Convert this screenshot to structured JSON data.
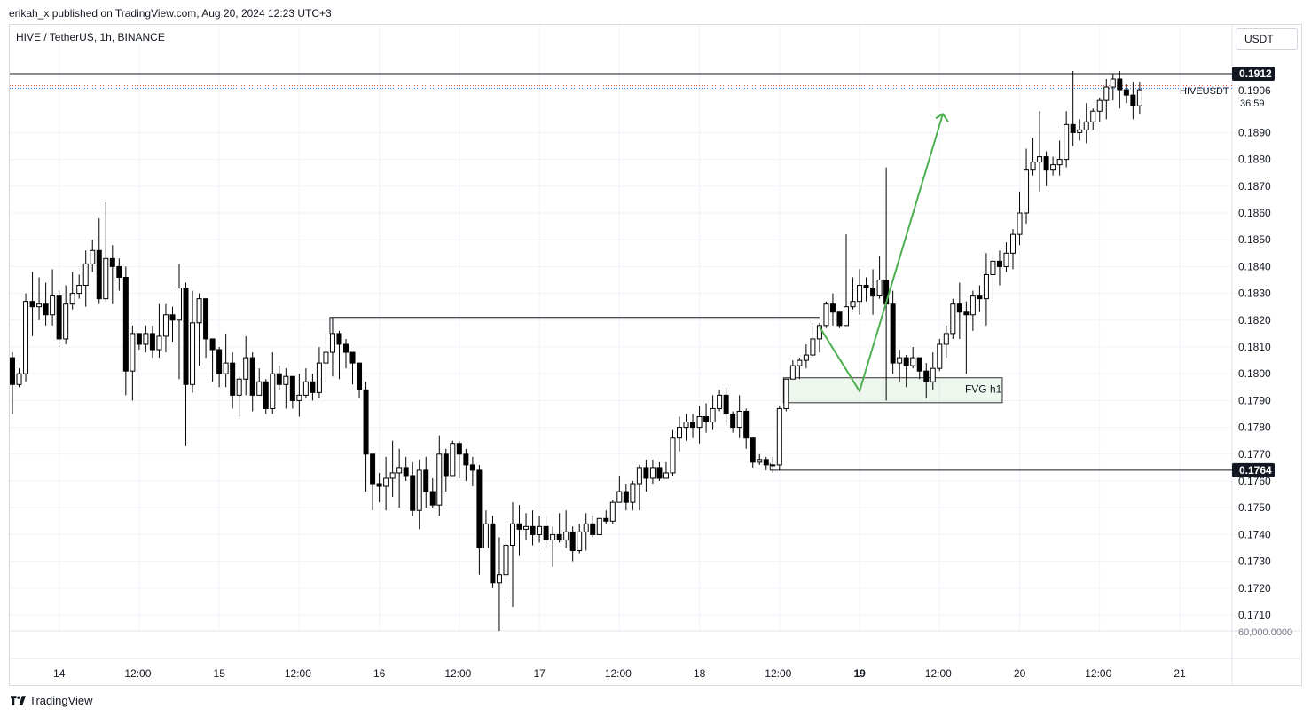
{
  "header": {
    "publisher_line": "erikah_x published on TradingView.com, Aug 20, 2024 12:23 UTC+3"
  },
  "symbol": {
    "title": "HIVE / TetherUS, 1h, BINANCE",
    "unit_button": "USDT"
  },
  "footer": {
    "brand": "TradingView",
    "logo_icon": "tradingview-logo-icon"
  },
  "colors": {
    "up_body": "#ffffff",
    "down_body": "#000000",
    "wick": "#000000",
    "arrow": "#4caf50",
    "grid": "#f0f3fa",
    "label_bg": "#131722",
    "level_dotted_red": "#ef5350",
    "level_dotted_blue": "#2962ff"
  },
  "chart_data": {
    "type": "candlestick",
    "symbol": "HIVEUSDT",
    "interval": "1h",
    "y_range": [
      0.1705,
      0.1918
    ],
    "y_ticks": [
      "0.1710",
      "0.1720",
      "0.1730",
      "0.1740",
      "0.1750",
      "0.1760",
      "0.1770",
      "0.1780",
      "0.1790",
      "0.1800",
      "0.1810",
      "0.1820",
      "0.1830",
      "0.1840",
      "0.1850",
      "0.1860",
      "0.1870",
      "0.1880",
      "0.1890"
    ],
    "x_ticks": [
      {
        "label": "14",
        "bold": false,
        "index": 7
      },
      {
        "label": "12:00",
        "bold": false,
        "index": 19
      },
      {
        "label": "15",
        "bold": false,
        "index": 31
      },
      {
        "label": "12:00",
        "bold": false,
        "index": 43
      },
      {
        "label": "16",
        "bold": false,
        "index": 55
      },
      {
        "label": "12:00",
        "bold": false,
        "index": 67
      },
      {
        "label": "17",
        "bold": false,
        "index": 79
      },
      {
        "label": "12:00",
        "bold": false,
        "index": 91
      },
      {
        "label": "18",
        "bold": false,
        "index": 103
      },
      {
        "label": "12:00",
        "bold": false,
        "index": 115
      },
      {
        "label": "19",
        "bold": true,
        "index": 127
      },
      {
        "label": "12:00",
        "bold": false,
        "index": 139
      },
      {
        "label": "20",
        "bold": false,
        "index": 151
      },
      {
        "label": "12:00",
        "bold": false,
        "index": 163
      },
      {
        "label": "21",
        "bold": false,
        "index": 175
      }
    ],
    "volume_label": "60,000.0000",
    "last_price": {
      "symbol_label": "HIVEUSDT",
      "price": "0.1906",
      "countdown": "36:59"
    },
    "price_labels": [
      {
        "price": 0.1912,
        "text": "0.1912"
      },
      {
        "price": 0.1764,
        "text": "0.1764"
      }
    ],
    "levels": [
      {
        "kind": "horizontal-line",
        "price": 0.1912,
        "from_index": 0
      },
      {
        "kind": "horizontal-ray",
        "price": 0.1821,
        "from_index": 48,
        "to_index": 121
      },
      {
        "kind": "horizontal-ray",
        "price": 0.1764,
        "from_index": 114
      },
      {
        "kind": "dotted",
        "price": 0.19075,
        "color": "red"
      },
      {
        "kind": "dotted",
        "price": 0.19065,
        "color": "blue"
      }
    ],
    "fvg_zone": {
      "label": "FVG h1",
      "top": 0.17985,
      "bottom": 0.17892,
      "from_index": 116,
      "to_index": 148
    },
    "projection_path": [
      {
        "index": 121,
        "price": 0.18175
      },
      {
        "index": 127,
        "price": 0.17935
      },
      {
        "index": 139.5,
        "price": 0.1897
      }
    ],
    "candles": [
      [
        0.1806,
        0.1796,
        0.1808,
        0.1785
      ],
      [
        0.1796,
        0.18,
        0.1802,
        0.1795
      ],
      [
        0.18,
        0.1827,
        0.183,
        0.1797
      ],
      [
        0.1827,
        0.1825,
        0.1838,
        0.1814
      ],
      [
        0.1825,
        0.1826,
        0.1836,
        0.182
      ],
      [
        0.1826,
        0.1822,
        0.1834,
        0.1818
      ],
      [
        0.1822,
        0.1829,
        0.1839,
        0.1818
      ],
      [
        0.1829,
        0.1813,
        0.1831,
        0.181
      ],
      [
        0.1813,
        0.1826,
        0.1833,
        0.1811
      ],
      [
        0.1826,
        0.183,
        0.1838,
        0.1824
      ],
      [
        0.183,
        0.1833,
        0.1837,
        0.1828
      ],
      [
        0.1833,
        0.1841,
        0.1846,
        0.1825
      ],
      [
        0.1841,
        0.1846,
        0.185,
        0.1838
      ],
      [
        0.1846,
        0.1828,
        0.1858,
        0.1826
      ],
      [
        0.1828,
        0.1843,
        0.1864,
        0.1827
      ],
      [
        0.1843,
        0.184,
        0.1848,
        0.1826
      ],
      [
        0.184,
        0.1836,
        0.1843,
        0.1831
      ],
      [
        0.1836,
        0.1801,
        0.184,
        0.1792
      ],
      [
        0.1801,
        0.1815,
        0.1818,
        0.179
      ],
      [
        0.1815,
        0.1811,
        0.1814,
        0.1809
      ],
      [
        0.1811,
        0.1815,
        0.1818,
        0.1808
      ],
      [
        0.1815,
        0.1809,
        0.1818,
        0.1806
      ],
      [
        0.1809,
        0.1814,
        0.1826,
        0.1806
      ],
      [
        0.1814,
        0.1822,
        0.1826,
        0.1808
      ],
      [
        0.1822,
        0.182,
        0.1825,
        0.1812
      ],
      [
        0.182,
        0.1832,
        0.1841,
        0.1798
      ],
      [
        0.1832,
        0.1796,
        0.1834,
        0.1773
      ],
      [
        0.1796,
        0.1819,
        0.1831,
        0.1793
      ],
      [
        0.1819,
        0.1828,
        0.183,
        0.1803
      ],
      [
        0.1828,
        0.1813,
        0.1826,
        0.1806
      ],
      [
        0.1813,
        0.1809,
        0.1813,
        0.1797
      ],
      [
        0.1809,
        0.18,
        0.181,
        0.1795
      ],
      [
        0.18,
        0.1804,
        0.1815,
        0.1795
      ],
      [
        0.1804,
        0.1792,
        0.1808,
        0.1787
      ],
      [
        0.1792,
        0.1798,
        0.1799,
        0.1784
      ],
      [
        0.1798,
        0.1806,
        0.1814,
        0.1792
      ],
      [
        0.1806,
        0.1792,
        0.1808,
        0.1786
      ],
      [
        0.1792,
        0.1797,
        0.1802,
        0.1792
      ],
      [
        0.1797,
        0.1787,
        0.1798,
        0.1785
      ],
      [
        0.1787,
        0.18,
        0.1808,
        0.1785
      ],
      [
        0.18,
        0.1796,
        0.1803,
        0.1794
      ],
      [
        0.1796,
        0.1799,
        0.1802,
        0.1787
      ],
      [
        0.1799,
        0.179,
        0.1798,
        0.1787
      ],
      [
        0.179,
        0.1792,
        0.18,
        0.1784
      ],
      [
        0.1792,
        0.1797,
        0.1802,
        0.1791
      ],
      [
        0.1797,
        0.1793,
        0.18,
        0.179
      ],
      [
        0.1793,
        0.1804,
        0.181,
        0.1791
      ],
      [
        0.1804,
        0.1808,
        0.1815,
        0.1797
      ],
      [
        0.1808,
        0.1815,
        0.1821,
        0.1799
      ],
      [
        0.1815,
        0.1811,
        0.1816,
        0.1798
      ],
      [
        0.1811,
        0.1808,
        0.1813,
        0.1802
      ],
      [
        0.1808,
        0.1804,
        0.1805,
        0.1796
      ],
      [
        0.1804,
        0.1794,
        0.1801,
        0.1791
      ],
      [
        0.1794,
        0.177,
        0.1797,
        0.1756
      ],
      [
        0.177,
        0.1759,
        0.1763,
        0.1749
      ],
      [
        0.1759,
        0.1758,
        0.1763,
        0.1752
      ],
      [
        0.1758,
        0.1761,
        0.1769,
        0.1749
      ],
      [
        0.1761,
        0.1763,
        0.1775,
        0.1754
      ],
      [
        0.1763,
        0.1765,
        0.1772,
        0.175
      ],
      [
        0.1765,
        0.1762,
        0.1769,
        0.176
      ],
      [
        0.1762,
        0.1749,
        0.1767,
        0.1747
      ],
      [
        0.1749,
        0.1764,
        0.1768,
        0.1742
      ],
      [
        0.1764,
        0.1756,
        0.1769,
        0.175
      ],
      [
        0.1756,
        0.1751,
        0.1761,
        0.175
      ],
      [
        0.1751,
        0.177,
        0.1777,
        0.1747
      ],
      [
        0.177,
        0.1762,
        0.1772,
        0.1756
      ],
      [
        0.1762,
        0.1774,
        0.1775,
        0.1766
      ],
      [
        0.1774,
        0.177,
        0.1775,
        0.1761
      ],
      [
        0.177,
        0.1766,
        0.1772,
        0.176
      ],
      [
        0.1766,
        0.1764,
        0.1769,
        0.1758
      ],
      [
        0.1764,
        0.1735,
        0.1766,
        0.1725
      ],
      [
        0.1735,
        0.1744,
        0.1749,
        0.1736
      ],
      [
        0.1744,
        0.1722,
        0.1747,
        0.172
      ],
      [
        0.1722,
        0.1725,
        0.1739,
        0.1704
      ],
      [
        0.1725,
        0.1736,
        0.1745,
        0.1716
      ],
      [
        0.1736,
        0.1744,
        0.1752,
        0.1713
      ],
      [
        0.1744,
        0.1742,
        0.1751,
        0.1732
      ],
      [
        0.1742,
        0.1743,
        0.1748,
        0.1738
      ],
      [
        0.1743,
        0.174,
        0.1749,
        0.1736
      ],
      [
        0.174,
        0.1743,
        0.1747,
        0.1737
      ],
      [
        0.1743,
        0.1738,
        0.1747,
        0.1735
      ],
      [
        0.1738,
        0.174,
        0.1743,
        0.1728
      ],
      [
        0.174,
        0.1738,
        0.1748,
        0.1737
      ],
      [
        0.1738,
        0.1741,
        0.1749,
        0.1735
      ],
      [
        0.1741,
        0.1734,
        0.1743,
        0.173
      ],
      [
        0.1734,
        0.1741,
        0.1744,
        0.1733
      ],
      [
        0.1741,
        0.1744,
        0.1748,
        0.1734
      ],
      [
        0.1744,
        0.174,
        0.1747,
        0.1739
      ],
      [
        0.174,
        0.1746,
        0.1746,
        0.1742
      ],
      [
        0.1746,
        0.1745,
        0.1749,
        0.1744
      ],
      [
        0.1745,
        0.1752,
        0.1753,
        0.1744
      ],
      [
        0.1752,
        0.1756,
        0.1762,
        0.1753
      ],
      [
        0.1756,
        0.1752,
        0.1759,
        0.1749
      ],
      [
        0.1752,
        0.1759,
        0.176,
        0.1749
      ],
      [
        0.1759,
        0.1765,
        0.1766,
        0.1749
      ],
      [
        0.1765,
        0.1761,
        0.1768,
        0.1756
      ],
      [
        0.1761,
        0.1765,
        0.1768,
        0.1759
      ],
      [
        0.1765,
        0.1761,
        0.1767,
        0.176
      ],
      [
        0.1761,
        0.1763,
        0.1767,
        0.1761
      ],
      [
        0.1763,
        0.1776,
        0.1779,
        0.1762
      ],
      [
        0.1776,
        0.178,
        0.1784,
        0.1771
      ],
      [
        0.178,
        0.1782,
        0.1785,
        0.1775
      ],
      [
        0.1782,
        0.178,
        0.1785,
        0.1776
      ],
      [
        0.178,
        0.1784,
        0.1788,
        0.1774
      ],
      [
        0.1784,
        0.1782,
        0.1789,
        0.1778
      ],
      [
        0.1782,
        0.1787,
        0.1792,
        0.1779
      ],
      [
        0.1787,
        0.1792,
        0.1794,
        0.1786
      ],
      [
        0.1792,
        0.1785,
        0.1795,
        0.1781
      ],
      [
        0.1785,
        0.178,
        0.1786,
        0.1778
      ],
      [
        0.178,
        0.1786,
        0.1792,
        0.1776
      ],
      [
        0.1786,
        0.1776,
        0.1787,
        0.1772
      ],
      [
        0.1776,
        0.1767,
        0.1775,
        0.1765
      ],
      [
        0.1767,
        0.1768,
        0.177,
        0.1766
      ],
      [
        0.1768,
        0.1766,
        0.1769,
        0.1764
      ],
      [
        0.1766,
        0.1766,
        0.1769,
        0.1763
      ],
      [
        0.1766,
        0.1787,
        0.1788,
        0.1764
      ],
      [
        0.1787,
        0.1798,
        0.1798,
        0.1786
      ],
      [
        0.1798,
        0.1803,
        0.1805,
        0.1799
      ],
      [
        0.1803,
        0.1805,
        0.1806,
        0.1798
      ],
      [
        0.1805,
        0.1807,
        0.1811,
        0.1802
      ],
      [
        0.1807,
        0.1813,
        0.1819,
        0.1806
      ],
      [
        0.1813,
        0.1818,
        0.1819,
        0.1808
      ],
      [
        0.1818,
        0.1826,
        0.1827,
        0.1817
      ],
      [
        0.1826,
        0.1823,
        0.183,
        0.1818
      ],
      [
        0.1823,
        0.1818,
        0.1823,
        0.1817
      ],
      [
        0.1818,
        0.1825,
        0.1852,
        0.1818
      ],
      [
        0.1825,
        0.1827,
        0.1836,
        0.1824
      ],
      [
        0.1827,
        0.1833,
        0.1839,
        0.1822
      ],
      [
        0.1833,
        0.1832,
        0.1836,
        0.1827
      ],
      [
        0.1832,
        0.1829,
        0.1839,
        0.1822
      ],
      [
        0.1829,
        0.1835,
        0.1844,
        0.1828
      ],
      [
        0.1835,
        0.1826,
        0.1877,
        0.179
      ],
      [
        0.1826,
        0.1804,
        0.1831,
        0.18
      ],
      [
        0.1804,
        0.1806,
        0.1809,
        0.1797
      ],
      [
        0.1806,
        0.1803,
        0.1807,
        0.1795
      ],
      [
        0.1803,
        0.1806,
        0.181,
        0.1802
      ],
      [
        0.1806,
        0.1801,
        0.1806,
        0.1798
      ],
      [
        0.1801,
        0.1797,
        0.1804,
        0.1791
      ],
      [
        0.1797,
        0.1802,
        0.1808,
        0.1794
      ],
      [
        0.1802,
        0.1811,
        0.1813,
        0.1801
      ],
      [
        0.1811,
        0.1815,
        0.1818,
        0.1806
      ],
      [
        0.1815,
        0.1826,
        0.1828,
        0.1813
      ],
      [
        0.1826,
        0.1823,
        0.1834,
        0.1813
      ],
      [
        0.1823,
        0.1822,
        0.1827,
        0.18
      ],
      [
        0.1822,
        0.1829,
        0.1831,
        0.1816
      ],
      [
        0.1829,
        0.1828,
        0.1833,
        0.1823
      ],
      [
        0.1828,
        0.1837,
        0.1845,
        0.1818
      ],
      [
        0.1837,
        0.1842,
        0.1844,
        0.1827
      ],
      [
        0.1842,
        0.184,
        0.1846,
        0.1833
      ],
      [
        0.184,
        0.1845,
        0.1849,
        0.1838
      ],
      [
        0.1845,
        0.1852,
        0.1854,
        0.1839
      ],
      [
        0.1852,
        0.186,
        0.1868,
        0.1848
      ],
      [
        0.186,
        0.1876,
        0.1884,
        0.1856
      ],
      [
        0.1876,
        0.1879,
        0.1888,
        0.1874
      ],
      [
        0.1879,
        0.1881,
        0.1898,
        0.1868
      ],
      [
        0.1881,
        0.1876,
        0.1883,
        0.187
      ],
      [
        0.1876,
        0.1878,
        0.1881,
        0.1874
      ],
      [
        0.1878,
        0.188,
        0.1887,
        0.1874
      ],
      [
        0.188,
        0.1893,
        0.1898,
        0.1877
      ],
      [
        0.1893,
        0.189,
        0.1913,
        0.1885
      ],
      [
        0.189,
        0.1891,
        0.1895,
        0.1887
      ],
      [
        0.1891,
        0.1894,
        0.1901,
        0.1886
      ],
      [
        0.1894,
        0.1898,
        0.1899,
        0.1891
      ],
      [
        0.1898,
        0.1902,
        0.1903,
        0.1894
      ],
      [
        0.1902,
        0.1907,
        0.191,
        0.1895
      ],
      [
        0.1907,
        0.191,
        0.1912,
        0.1902
      ],
      [
        0.191,
        0.1906,
        0.1913,
        0.1899
      ],
      [
        0.1906,
        0.1904,
        0.1908,
        0.1901
      ],
      [
        0.1904,
        0.19,
        0.1909,
        0.1895
      ],
      [
        0.19,
        0.1906,
        0.1909,
        0.1897
      ]
    ]
  }
}
